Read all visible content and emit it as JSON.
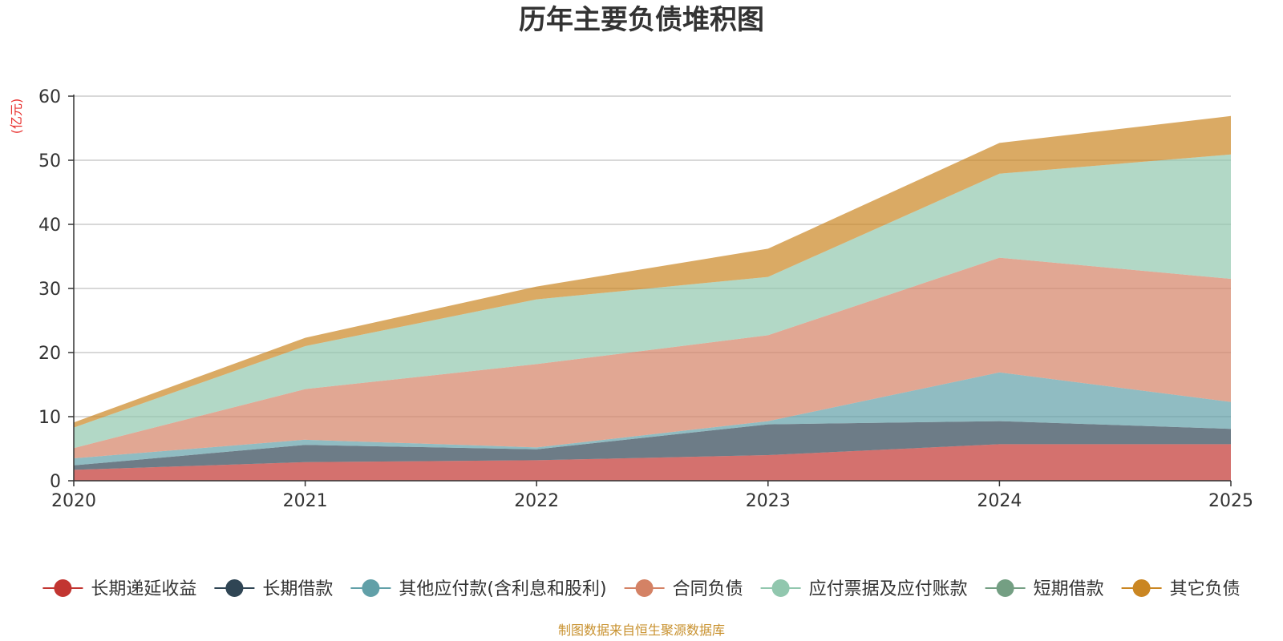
{
  "chart_data": {
    "type": "area",
    "stacked": true,
    "title": "历年主要负债堆积图",
    "ylabel": "(亿元)",
    "xlabel": "",
    "source": "制图数据来自恒生聚源数据库",
    "x": [
      "2020",
      "2021",
      "2022",
      "2023",
      "2024",
      "2025"
    ],
    "ylim": [
      0,
      60
    ],
    "yticks": [
      "0",
      "10",
      "20",
      "30",
      "40",
      "50",
      "60"
    ],
    "grid": true,
    "legend_position": "bottom",
    "series": [
      {
        "name": "长期递延收益",
        "color": "#c23531",
        "values": [
          1.7,
          2.9,
          3.2,
          4.0,
          5.7,
          5.7
        ]
      },
      {
        "name": "长期借款",
        "color": "#2f4554",
        "values": [
          0.7,
          2.7,
          1.7,
          4.8,
          3.6,
          2.4
        ]
      },
      {
        "name": "其他应付款(含利息和股利)",
        "color": "#61a0a8",
        "values": [
          1.1,
          0.8,
          0.3,
          0.5,
          7.6,
          4.2
        ]
      },
      {
        "name": "合同负债",
        "color": "#d48265",
        "values": [
          1.6,
          7.9,
          13.0,
          13.4,
          17.9,
          19.2
        ]
      },
      {
        "name": "应付票据及应付账款",
        "color": "#91c7ae",
        "values": [
          3.2,
          6.7,
          10.1,
          9.1,
          13.1,
          19.4
        ]
      },
      {
        "name": "短期借款",
        "color": "#749f83",
        "values": [
          0,
          0,
          0,
          0,
          0,
          0
        ]
      },
      {
        "name": "其它负债",
        "color": "#ca8622",
        "values": [
          0.8,
          1.3,
          2.0,
          4.4,
          4.8,
          6.0
        ]
      }
    ]
  }
}
